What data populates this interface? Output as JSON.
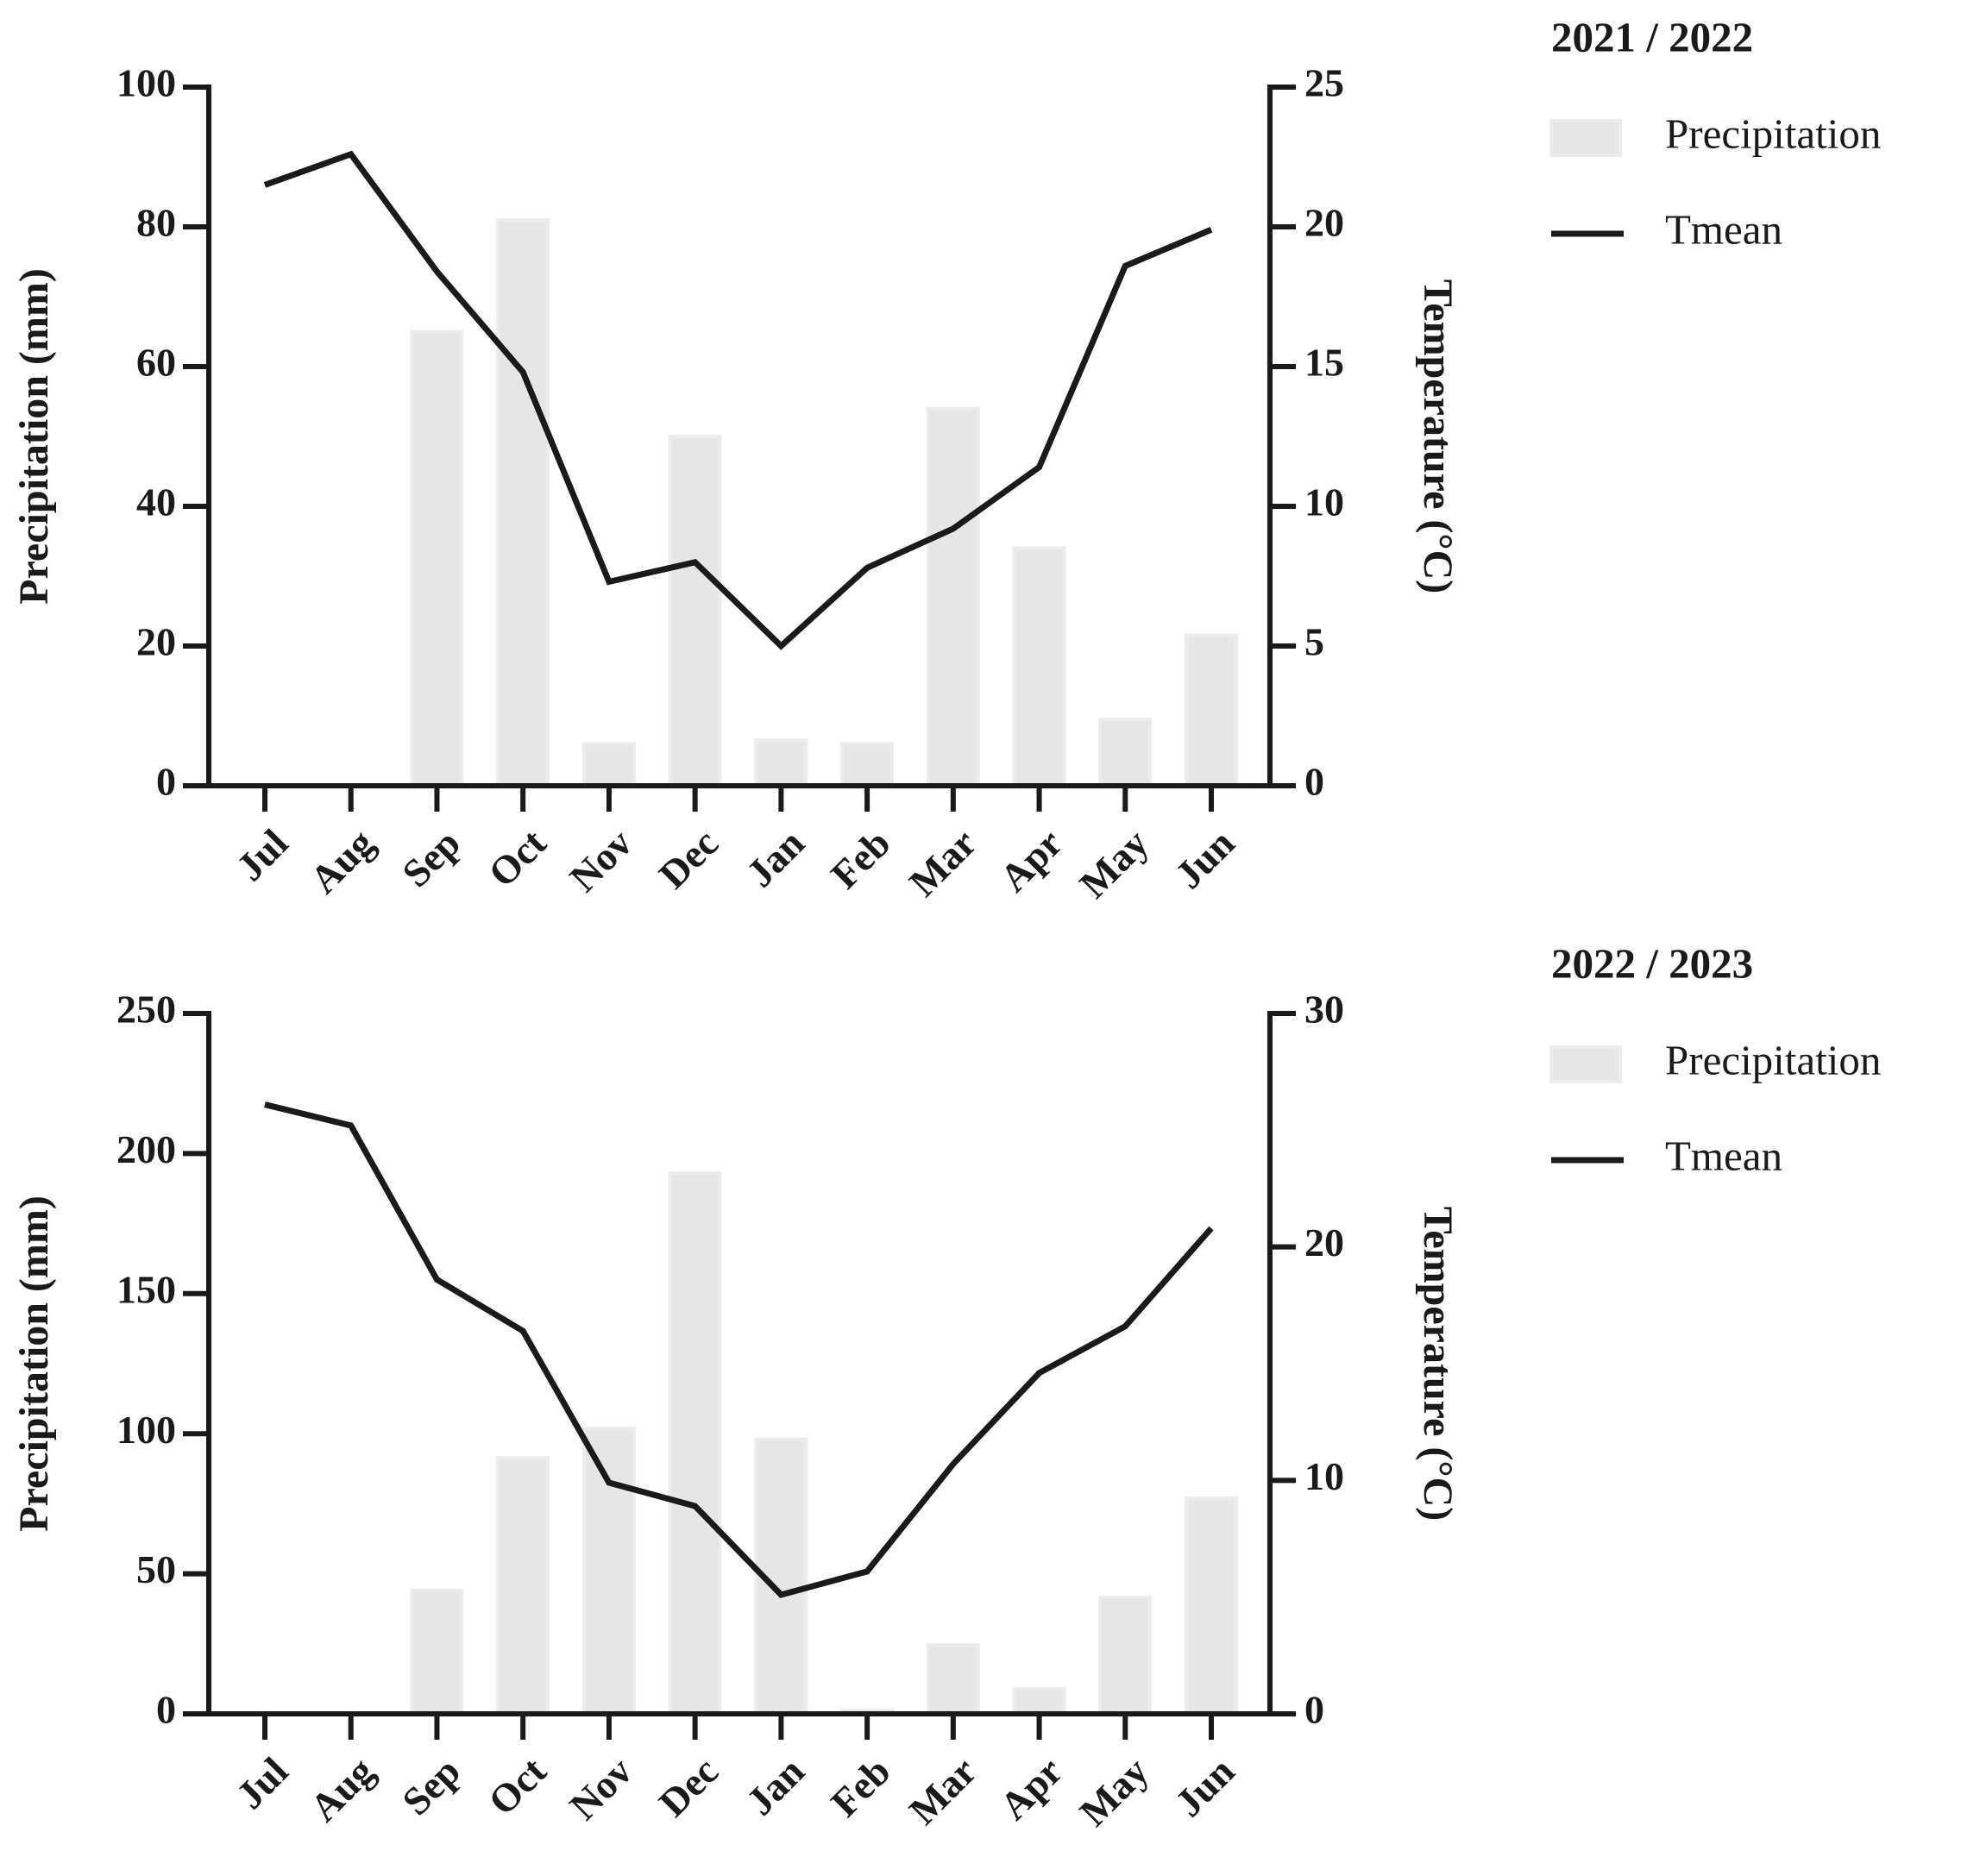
{
  "chart_data": [
    {
      "type": "combo",
      "title": "2021 / 2022",
      "categories": [
        "Jul",
        "Aug",
        "Sep",
        "Oct",
        "Nov",
        "Dec",
        "Jan",
        "Feb",
        "Mar",
        "Apr",
        "May",
        "Jun"
      ],
      "ylabel": "Precipitation (mm)",
      "y2label": "Temperature (°C)",
      "ylim": [
        0,
        100
      ],
      "yticks": [
        0,
        20,
        40,
        60,
        80,
        100
      ],
      "y2lim": [
        0,
        25
      ],
      "y2ticks": [
        0,
        5,
        10,
        15,
        20,
        25
      ],
      "series": [
        {
          "name": "Precipitation",
          "type": "bar",
          "color": "#e6e6e6",
          "values": [
            0,
            0,
            65,
            81,
            6,
            50,
            6.5,
            6,
            54,
            34,
            9.5,
            21.5
          ]
        },
        {
          "name": "Tmean",
          "type": "line",
          "axis": "y2",
          "color": "#1a1a1a",
          "values": [
            21.5,
            22.6,
            18.4,
            14.8,
            7.3,
            8.0,
            5.0,
            7.8,
            9.2,
            11.4,
            18.6,
            19.9
          ]
        }
      ]
    },
    {
      "type": "combo",
      "title": "2022 / 2023",
      "categories": [
        "Jul",
        "Aug",
        "Sep",
        "Oct",
        "Nov",
        "Dec",
        "Jan",
        "Feb",
        "Mar",
        "Apr",
        "May",
        "Jun"
      ],
      "ylabel": "Precipitation (mm)",
      "y2label": "Temperature (°C)",
      "ylim": [
        0,
        250
      ],
      "yticks": [
        0,
        50,
        100,
        150,
        200,
        250
      ],
      "y2lim": [
        0,
        30
      ],
      "y2ticks": [
        0,
        10,
        20,
        30
      ],
      "series": [
        {
          "name": "Precipitation",
          "type": "bar",
          "color": "#e6e6e6",
          "values": [
            0,
            0,
            44,
            91.5,
            102,
            193,
            98,
            1.3,
            24.6,
            9,
            41.5,
            77
          ]
        },
        {
          "name": "Tmean",
          "type": "line",
          "axis": "y2",
          "color": "#1a1a1a",
          "values": [
            26.1,
            25.2,
            18.6,
            16.4,
            9.9,
            8.9,
            5.1,
            6.1,
            10.7,
            14.6,
            16.6,
            20.8
          ]
        }
      ]
    }
  ]
}
